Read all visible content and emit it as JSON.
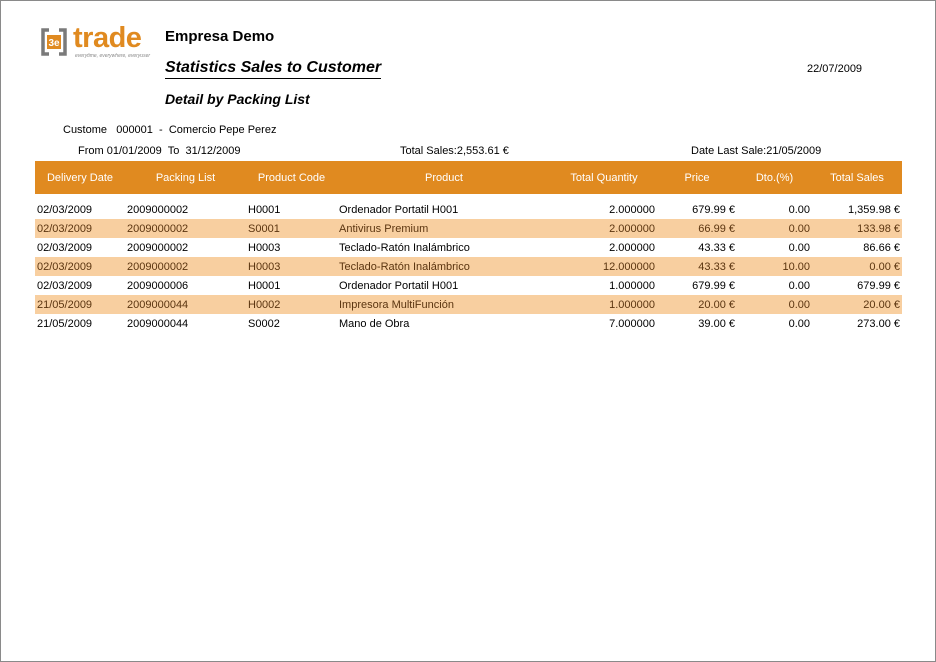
{
  "logo": {
    "mark": "3e",
    "word": "trade",
    "tagline": "everytime, everywhere, everyuser"
  },
  "header": {
    "company": "Empresa Demo",
    "title": "Statistics Sales to Customer",
    "subtitle": "Detail by Packing List",
    "date": "22/07/2009"
  },
  "info": {
    "customer_label": "Custome",
    "customer_code": "000001",
    "customer_sep": "-",
    "customer_name": "Comercio Pepe Perez",
    "from_label": "From",
    "from_date": "01/01/2009",
    "to_label": "To",
    "to_date": "31/12/2009",
    "total_sales": "Total Sales:2,553.61 €",
    "date_last_sale": "Date Last Sale:21/05/2009"
  },
  "colors": {
    "accent": "#e08a20",
    "row_alt": "#f8cfa0"
  },
  "table": {
    "columns": [
      "Delivery Date",
      "Packing List",
      "Product Code",
      "Product",
      "Total Quantity",
      "Price",
      "Dto.(%)",
      "Total Sales"
    ],
    "rows": [
      [
        "02/03/2009",
        "2009000002",
        "H0001",
        "Ordenador Portatil H001",
        "2.000000",
        "679.99 €",
        "0.00",
        "1,359.98 €"
      ],
      [
        "02/03/2009",
        "2009000002",
        "S0001",
        "Antivirus Premium",
        "2.000000",
        "66.99 €",
        "0.00",
        "133.98 €"
      ],
      [
        "02/03/2009",
        "2009000002",
        "H0003",
        "Teclado-Ratón Inalámbrico",
        "2.000000",
        "43.33 €",
        "0.00",
        "86.66 €"
      ],
      [
        "02/03/2009",
        "2009000002",
        "H0003",
        "Teclado-Ratón Inalámbrico",
        "12.000000",
        "43.33 €",
        "10.00",
        "0.00 €"
      ],
      [
        "02/03/2009",
        "2009000006",
        "H0001",
        "Ordenador Portatil H001",
        "1.000000",
        "679.99 €",
        "0.00",
        "679.99 €"
      ],
      [
        "21/05/2009",
        "2009000044",
        "H0002",
        "Impresora MultiFunción",
        "1.000000",
        "20.00 €",
        "0.00",
        "20.00 €"
      ],
      [
        "21/05/2009",
        "2009000044",
        "S0002",
        "Mano de Obra",
        "7.000000",
        "39.00 €",
        "0.00",
        "273.00 €"
      ]
    ]
  }
}
